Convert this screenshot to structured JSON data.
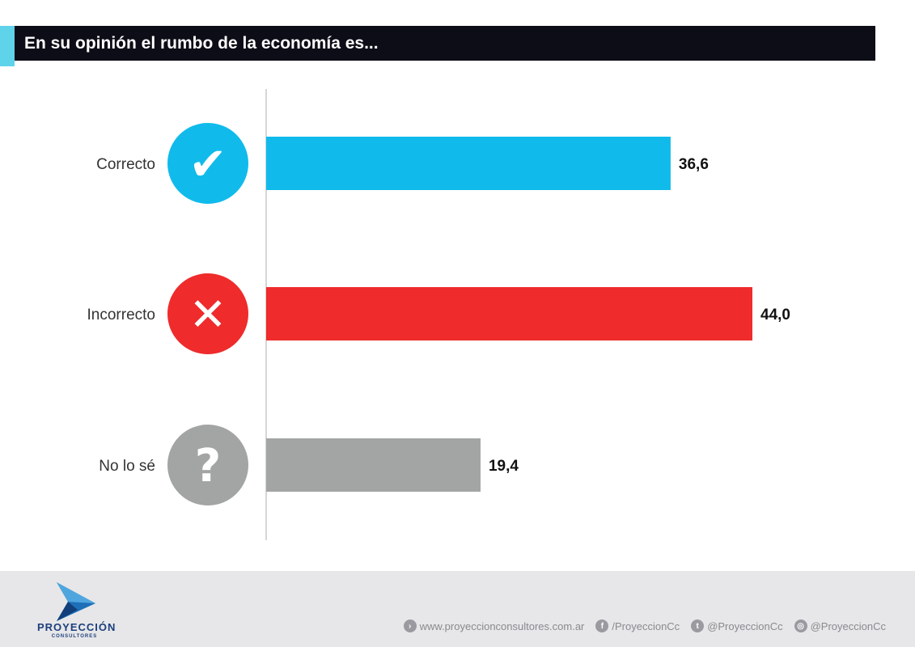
{
  "title": "En su opinión el rumbo de la economía es...",
  "chart_data": {
    "type": "bar",
    "orientation": "horizontal",
    "categories": [
      "Correcto",
      "Incorrecto",
      "No lo sé"
    ],
    "values": [
      36.6,
      44.0,
      19.4
    ],
    "value_labels": [
      "36,6",
      "44,0",
      "19,4"
    ],
    "colors": [
      "#10bbeb",
      "#ef2b2b",
      "#a3a4a4"
    ],
    "icons": [
      "check-icon",
      "x-icon",
      "question-icon"
    ],
    "icon_glyphs": [
      "✔",
      "✕",
      "?"
    ],
    "xlim": [
      0,
      44.0
    ],
    "grid": false
  },
  "footer": {
    "logo": {
      "name": "PROYECCIÓN",
      "sub": "CONSULTORES"
    },
    "website": "www.proyeccionconsultores.com.ar",
    "facebook": "/ProyeccionCc",
    "twitter": "@ProyeccionCc",
    "instagram": "@ProyeccionCc"
  }
}
